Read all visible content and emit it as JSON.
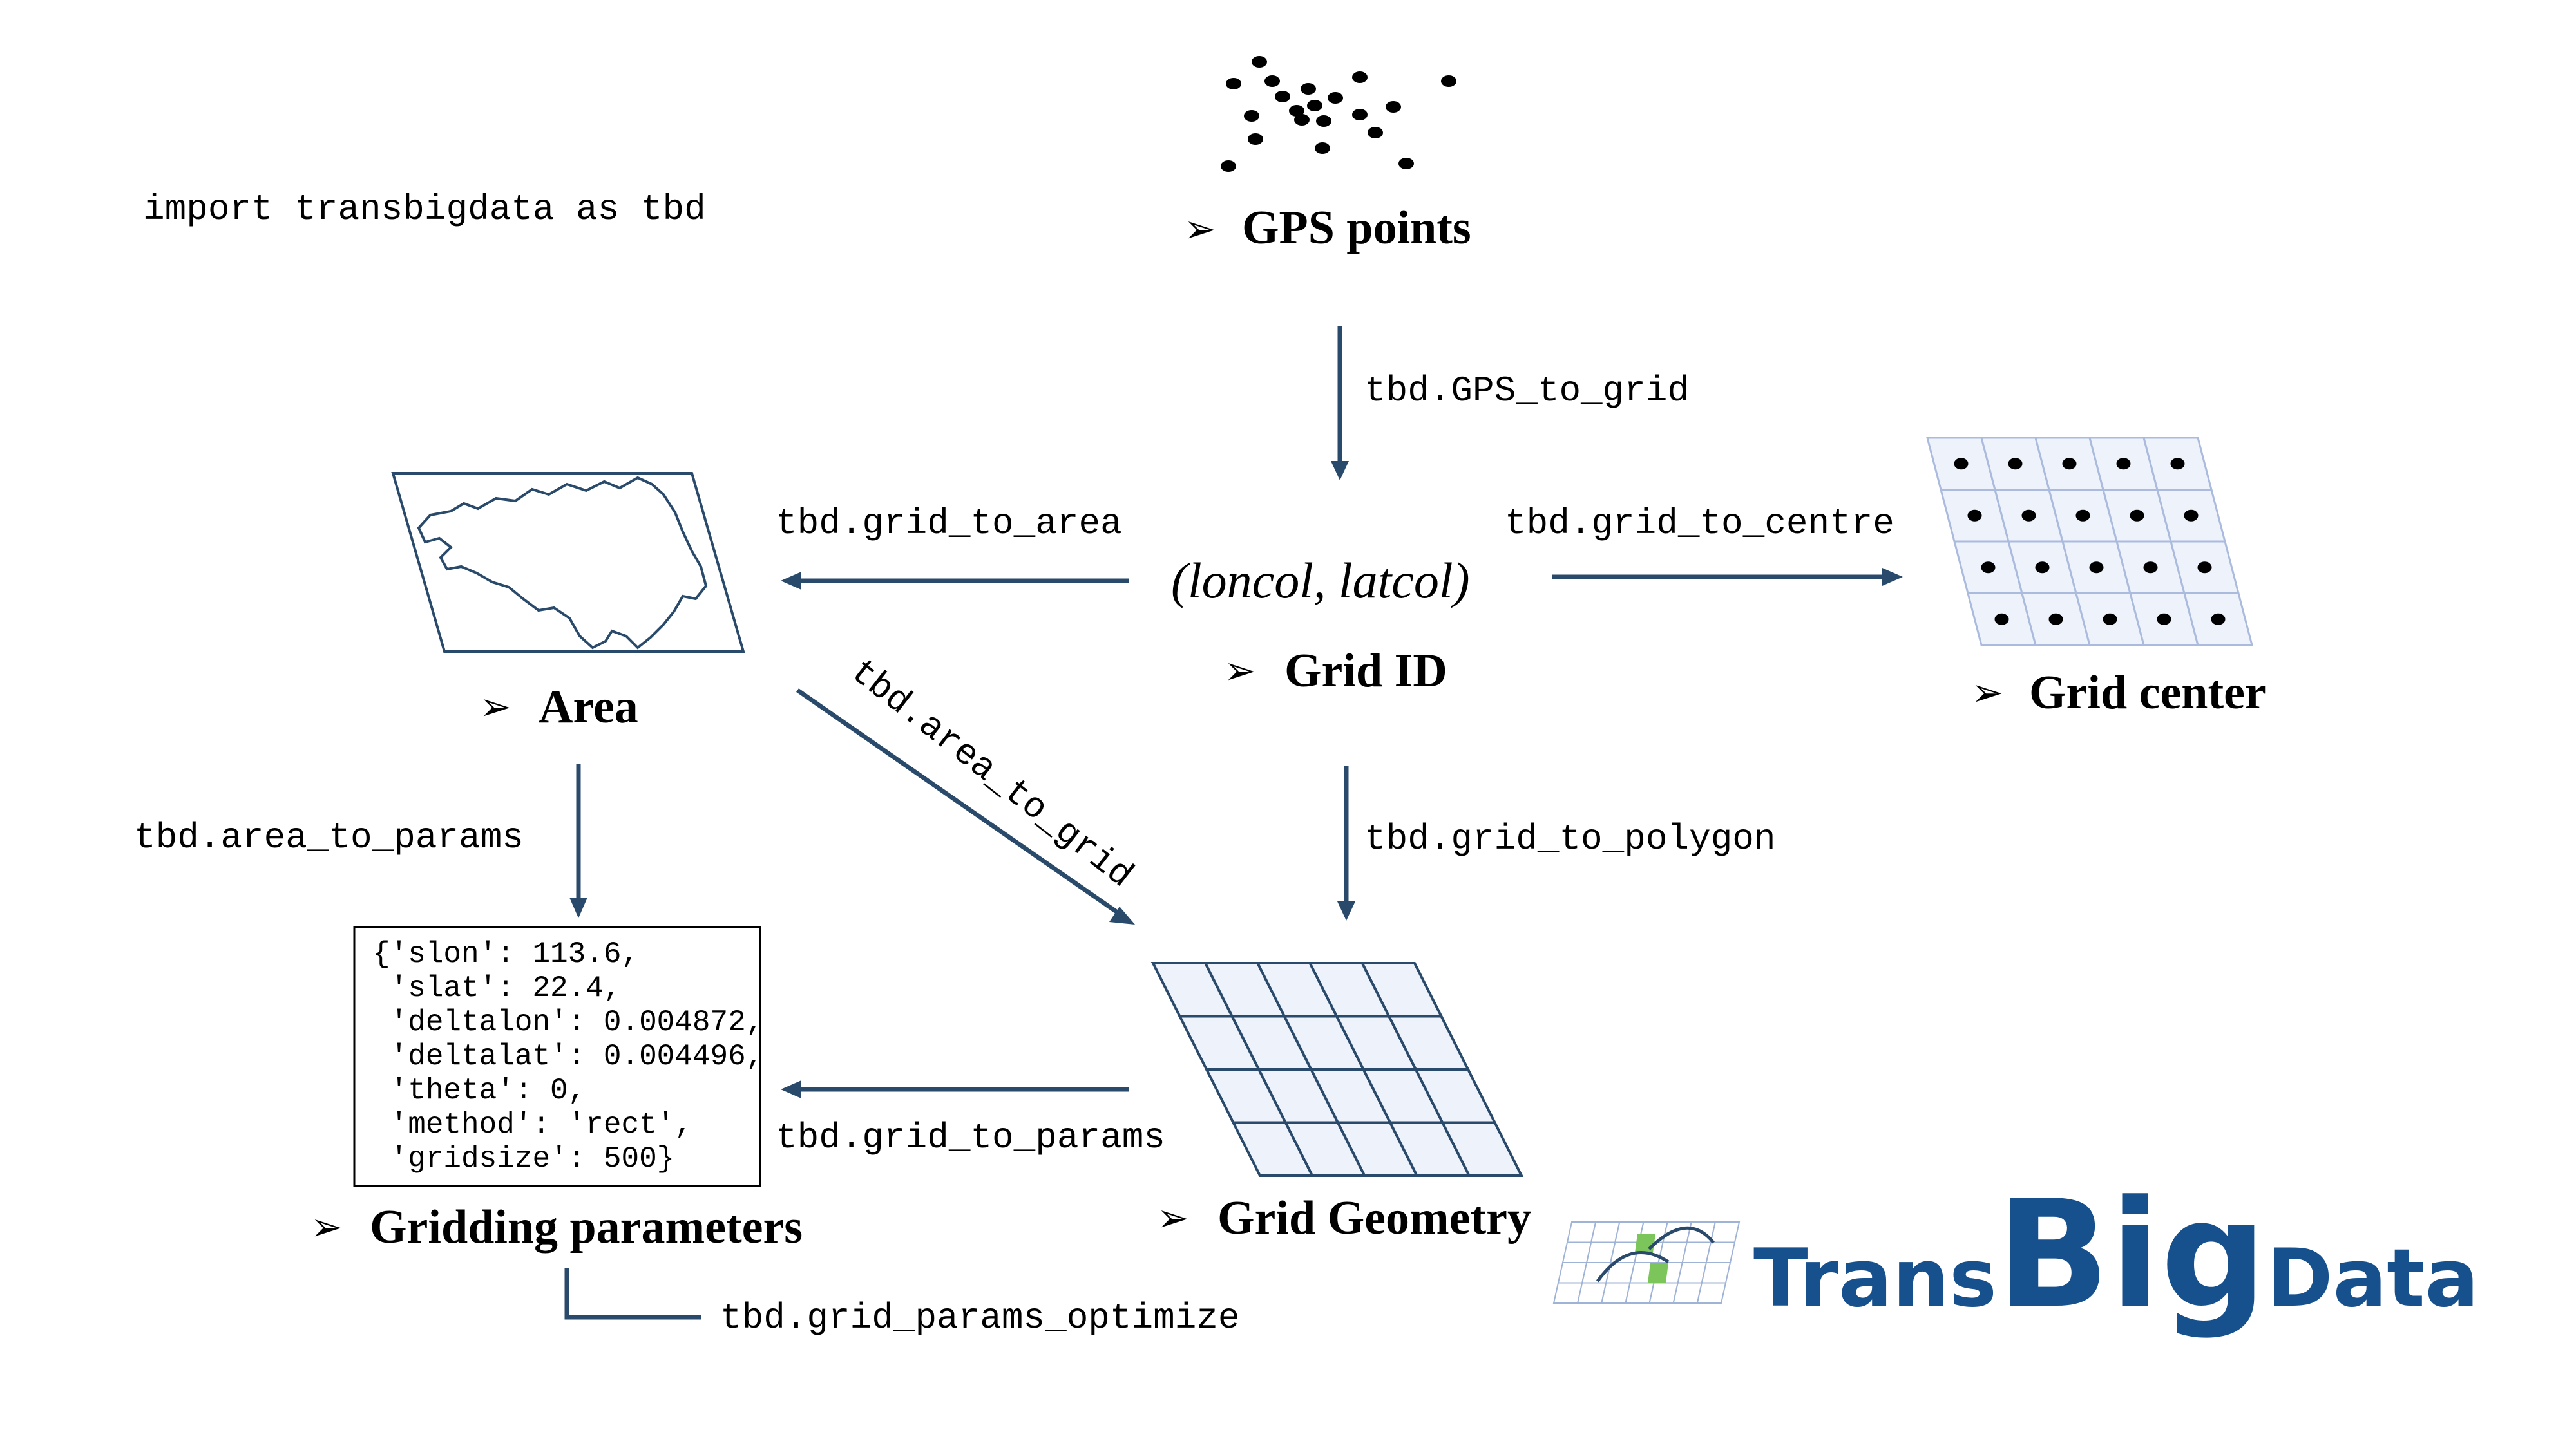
{
  "colors": {
    "arrow": "#2a4a6b",
    "grid_fill": "#eef2fa",
    "grid_line": "#2a4a6b",
    "grid_center_line": "#aabbdd",
    "logo_blue": "#16508d",
    "logo_green": "#7cc55a"
  },
  "header": {
    "import_statement": "import transbigdata as tbd"
  },
  "nodes": {
    "gps_points": {
      "label": "GPS points"
    },
    "grid_id": {
      "tuple": "(loncol, latcol)",
      "label": "Grid ID"
    },
    "area": {
      "label": "Area"
    },
    "grid_center": {
      "label": "Grid center"
    },
    "grid_geometry": {
      "label": "Grid Geometry"
    },
    "gridding_parameters": {
      "label": "Gridding parameters"
    }
  },
  "params_box": {
    "lines": [
      "{'slon': 113.6,",
      " 'slat': 22.4,",
      " 'deltalon': 0.004872,",
      " 'deltalat': 0.004496,",
      " 'theta': 0,",
      " 'method': 'rect',",
      " 'gridsize': 500}"
    ]
  },
  "functions": {
    "gps_to_grid": "tbd.GPS_to_grid",
    "grid_to_area": "tbd.grid_to_area",
    "grid_to_centre": "tbd.grid_to_centre",
    "area_to_grid": "tbd.area_to_grid",
    "grid_to_polygon": "tbd.grid_to_polygon",
    "area_to_params": "tbd.area_to_params",
    "grid_to_params": "tbd.grid_to_params",
    "grid_params_optimize": "tbd.grid_params_optimize"
  },
  "logo": {
    "part1": "Trans",
    "part2": "Big",
    "part3": "Data"
  }
}
